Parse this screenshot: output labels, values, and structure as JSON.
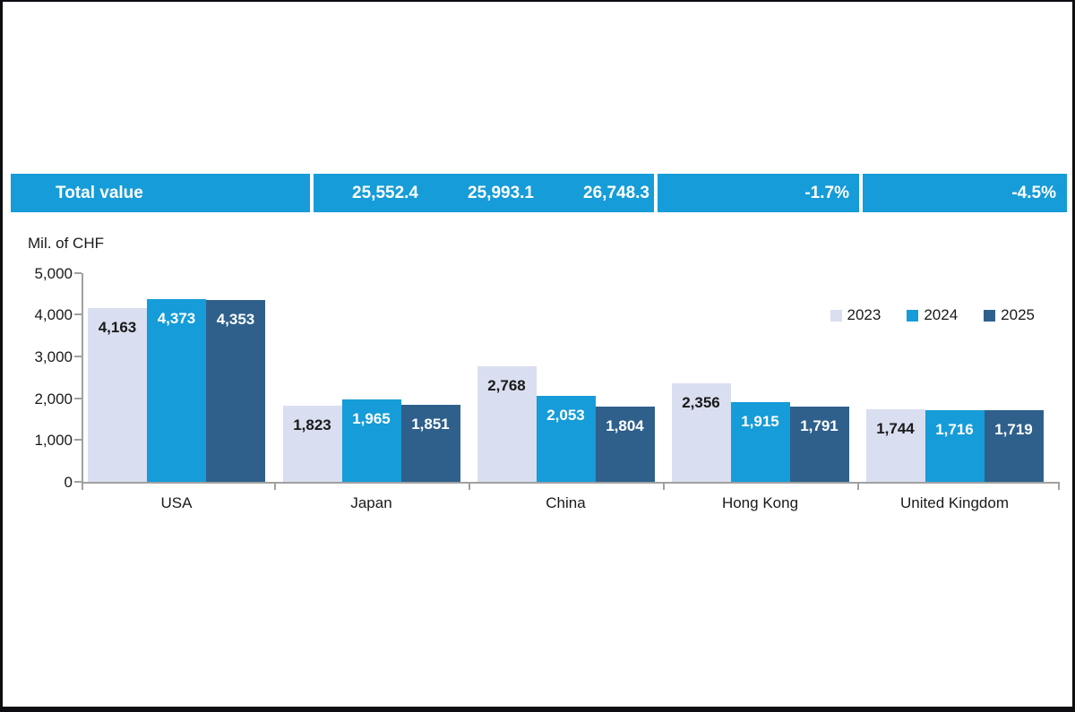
{
  "page": {
    "background": "#ffffff",
    "border_color": "#0d0d12"
  },
  "summary_bar": {
    "label": "Total value",
    "values": [
      "25,552.4",
      "25,993.1",
      "26,748.3"
    ],
    "changes": [
      "-1.7%",
      "-4.5%"
    ],
    "bg_color": "#169cd8",
    "text_color": "#ffffff"
  },
  "chart_data": {
    "type": "bar",
    "title": "",
    "unit_label": "Mil. of CHF",
    "categories": [
      "USA",
      "Japan",
      "China",
      "Hong Kong",
      "United Kingdom"
    ],
    "series": [
      {
        "name": "2023",
        "color": "#d9def0",
        "label_color": "#1a1a1a",
        "values": [
          4163,
          1823,
          2768,
          2356,
          1744
        ]
      },
      {
        "name": "2024",
        "color": "#169cd8",
        "label_color": "#ffffff",
        "values": [
          4373,
          1965,
          2053,
          1915,
          1716
        ]
      },
      {
        "name": "2025",
        "color": "#2f608c",
        "label_color": "#ffffff",
        "values": [
          4353,
          1851,
          1804,
          1791,
          1719
        ]
      }
    ],
    "y_ticks": [
      0,
      1000,
      2000,
      3000,
      4000,
      5000
    ],
    "ylim": [
      0,
      5000
    ],
    "grid": false,
    "legend_position": "top-right",
    "axis_color": "#a0a0a0"
  }
}
